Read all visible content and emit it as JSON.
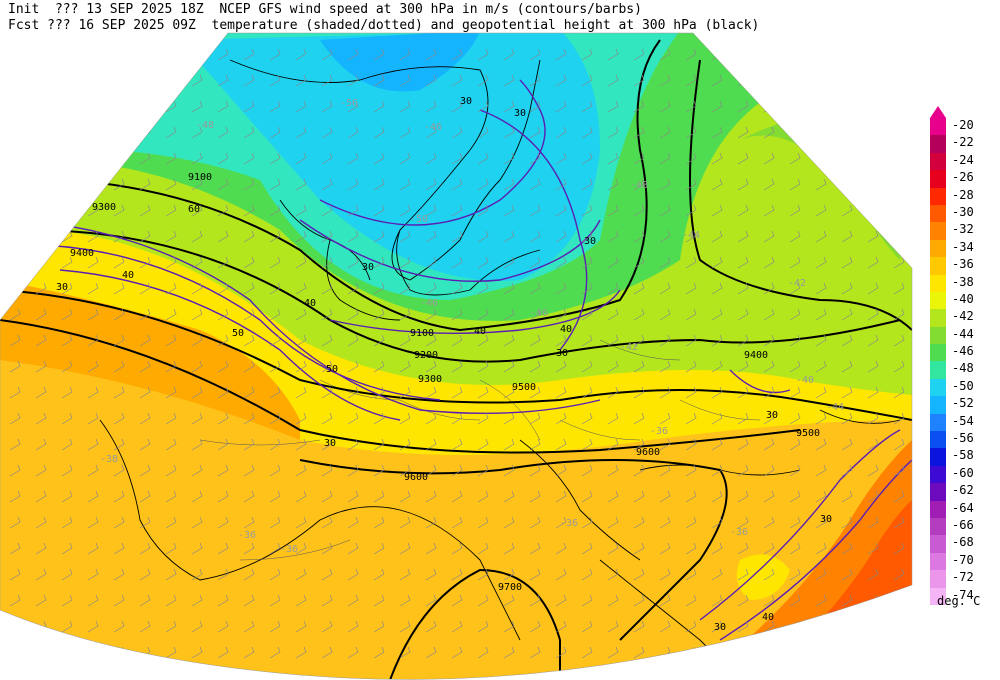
{
  "header": {
    "line1": "Init  ??? 13 SEP 2025 18Z  NCEP GFS wind speed at 300 hPa in m/s (contours/barbs)",
    "line2": "Fcst ??? 16 SEP 2025 09Z  temperature (shaded/dotted) and geopotential height at 300 hPa (black)"
  },
  "legend": {
    "units": "deg. C",
    "entries": [
      {
        "label": "-20",
        "color": "#e8008c"
      },
      {
        "label": "-22",
        "color": "#b4005a"
      },
      {
        "label": "-24",
        "color": "#d2003c"
      },
      {
        "label": "-26",
        "color": "#e6001e"
      },
      {
        "label": "-28",
        "color": "#ff2800"
      },
      {
        "label": "-30",
        "color": "#ff5a00"
      },
      {
        "label": "-32",
        "color": "#ff8200"
      },
      {
        "label": "-34",
        "color": "#ffaa00"
      },
      {
        "label": "-36",
        "color": "#ffc800"
      },
      {
        "label": "-38",
        "color": "#ffe600"
      },
      {
        "label": "-40",
        "color": "#ebf50a"
      },
      {
        "label": "-42",
        "color": "#b4e61e"
      },
      {
        "label": "-44",
        "color": "#82dc32"
      },
      {
        "label": "-46",
        "color": "#50dc50"
      },
      {
        "label": "-48",
        "color": "#32e6a0"
      },
      {
        "label": "-50",
        "color": "#1ed2f0"
      },
      {
        "label": "-52",
        "color": "#14b4ff"
      },
      {
        "label": "-54",
        "color": "#1e82ff"
      },
      {
        "label": "-56",
        "color": "#0a50f0"
      },
      {
        "label": "-58",
        "color": "#0a14dc"
      },
      {
        "label": "-60",
        "color": "#3c0ad2"
      },
      {
        "label": "-62",
        "color": "#6e0abe"
      },
      {
        "label": "-64",
        "color": "#a01eb4"
      },
      {
        "label": "-66",
        "color": "#b43cbe"
      },
      {
        "label": "-68",
        "color": "#c85ad2"
      },
      {
        "label": "-70",
        "color": "#dc78e1"
      },
      {
        "label": "-72",
        "color": "#eb96eb"
      },
      {
        "label": "-74",
        "color": "#f5b4f5"
      }
    ]
  },
  "map": {
    "height_labels": [
      "9100",
      "9300",
      "9400",
      "9100",
      "9200",
      "9300",
      "9400",
      "9500",
      "9500",
      "9600",
      "9600",
      "9700"
    ],
    "wind_labels": [
      "30",
      "30",
      "40",
      "30",
      "40",
      "50",
      "60",
      "30",
      "30",
      "40",
      "50",
      "30",
      "40",
      "30",
      "30",
      "30",
      "30",
      "40"
    ],
    "temp_labels": [
      "-48",
      "-56",
      "-46",
      "-48",
      "-50",
      "-46",
      "-46",
      "-44",
      "-42",
      "-42",
      "-44",
      "-36",
      "-36",
      "-36",
      "-36",
      "-36",
      "-38",
      "-40"
    ]
  }
}
